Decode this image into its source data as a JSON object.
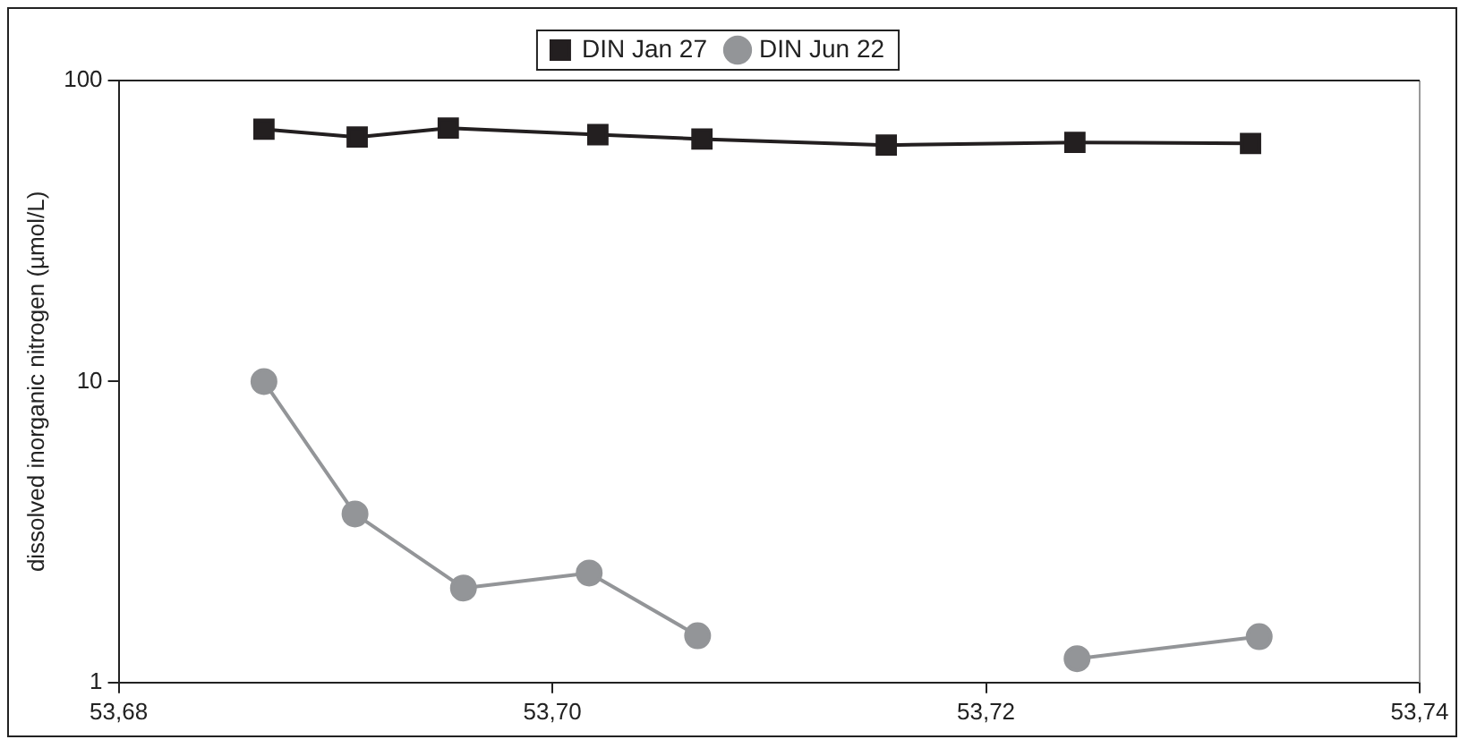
{
  "chart_data": {
    "type": "line",
    "ylabel": "dissolved inorganic nitrogen (µmol/L)",
    "log": "y",
    "xlim": [
      53.68,
      53.74
    ],
    "xticks": [
      {
        "value": 53.68,
        "label": "53,68"
      },
      {
        "value": 53.7,
        "label": "53,70"
      },
      {
        "value": 53.72,
        "label": "53,72"
      },
      {
        "value": 53.74,
        "label": "53,74"
      }
    ],
    "ylim": [
      1,
      100
    ],
    "yticks": [
      1,
      10,
      100
    ],
    "grid": false,
    "legend": "top",
    "line_style": "solid",
    "series": [
      {
        "name": "DIN Jan 27",
        "color": "#231f20",
        "marker": "square",
        "x": [
          53.6867,
          53.691,
          53.6952,
          53.7021,
          53.7069,
          53.7154,
          53.7241,
          53.7322
        ],
        "values": [
          68.9,
          64.9,
          69.5,
          66.1,
          63.9,
          61.0,
          62.3,
          61.8
        ]
      },
      {
        "name": "DIN Jun 22",
        "color": "#939598",
        "marker": "circle",
        "x": [
          53.6867,
          53.6909,
          53.6959,
          53.7017,
          53.7067,
          53.7159,
          53.7242,
          53.7326
        ],
        "values": [
          10,
          3.63,
          2.06,
          2.31,
          1.43,
          null,
          1.2,
          1.42
        ]
      }
    ]
  }
}
